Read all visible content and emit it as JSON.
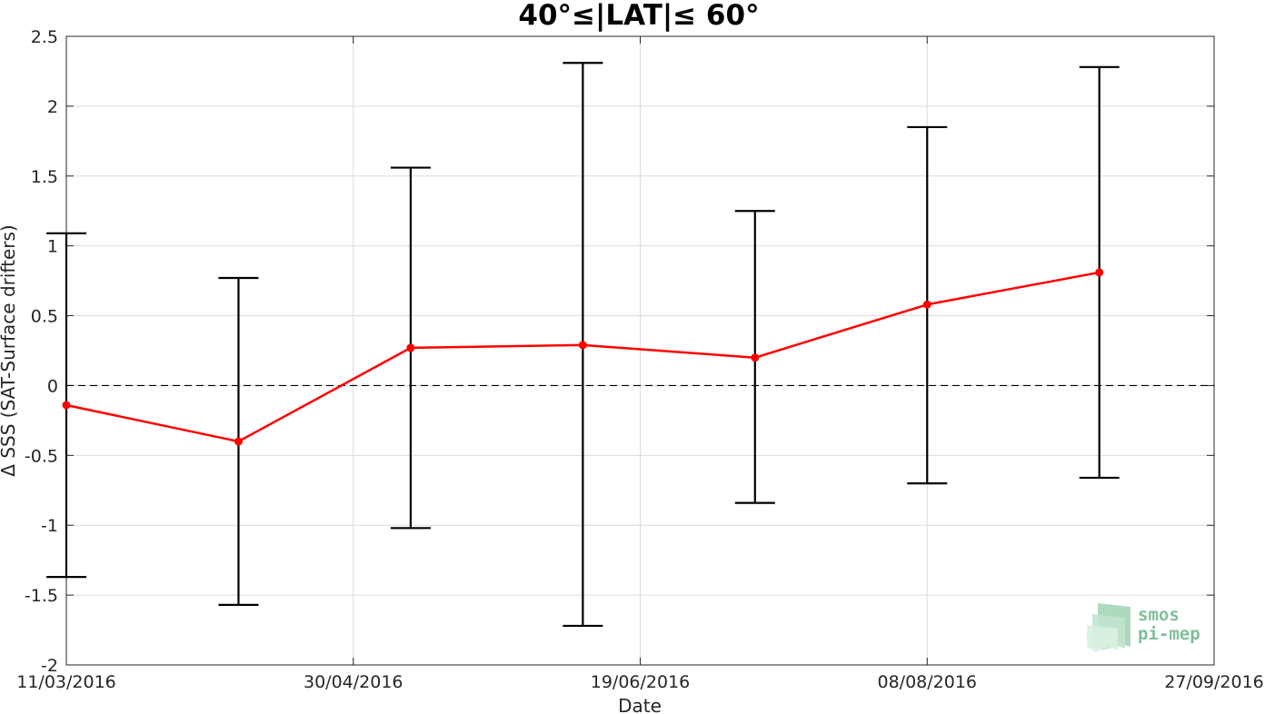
{
  "chart_data": {
    "type": "line",
    "title": "40°≤|LAT|≤ 60°",
    "xlabel": "Date",
    "ylabel": "Δ SSS (SAT-Surface drifters)",
    "xlim": [
      "2016-03-11",
      "2016-09-27"
    ],
    "ylim": [
      -2,
      2.5
    ],
    "x_ticks": [
      "11/03/2016",
      "30/04/2016",
      "19/06/2016",
      "08/08/2016",
      "27/09/2016"
    ],
    "y_ticks": [
      "2.5",
      "2",
      "1.5",
      "1",
      "0.5",
      "0",
      "-0.5",
      "-1",
      "-1.5",
      "-2"
    ],
    "grid": true,
    "reference_line": {
      "y": 0,
      "style": "dashed",
      "color": "#000000"
    },
    "series": [
      {
        "color": "#ff0000",
        "x": [
          "2016-03-11",
          "2016-04-10",
          "2016-05-10",
          "2016-06-09",
          "2016-07-09",
          "2016-08-08",
          "2016-09-07"
        ],
        "y": [
          -0.14,
          -0.4,
          0.27,
          0.29,
          0.2,
          0.58,
          0.81
        ],
        "error_low": [
          -1.37,
          -1.57,
          -1.02,
          -1.72,
          -0.84,
          -0.7,
          -0.66
        ],
        "error_high": [
          1.09,
          0.77,
          1.56,
          2.31,
          1.25,
          1.85,
          2.28
        ]
      }
    ]
  },
  "logo": {
    "line1": "smos",
    "line2": "pi-mep",
    "color": "#7fbf9a"
  }
}
